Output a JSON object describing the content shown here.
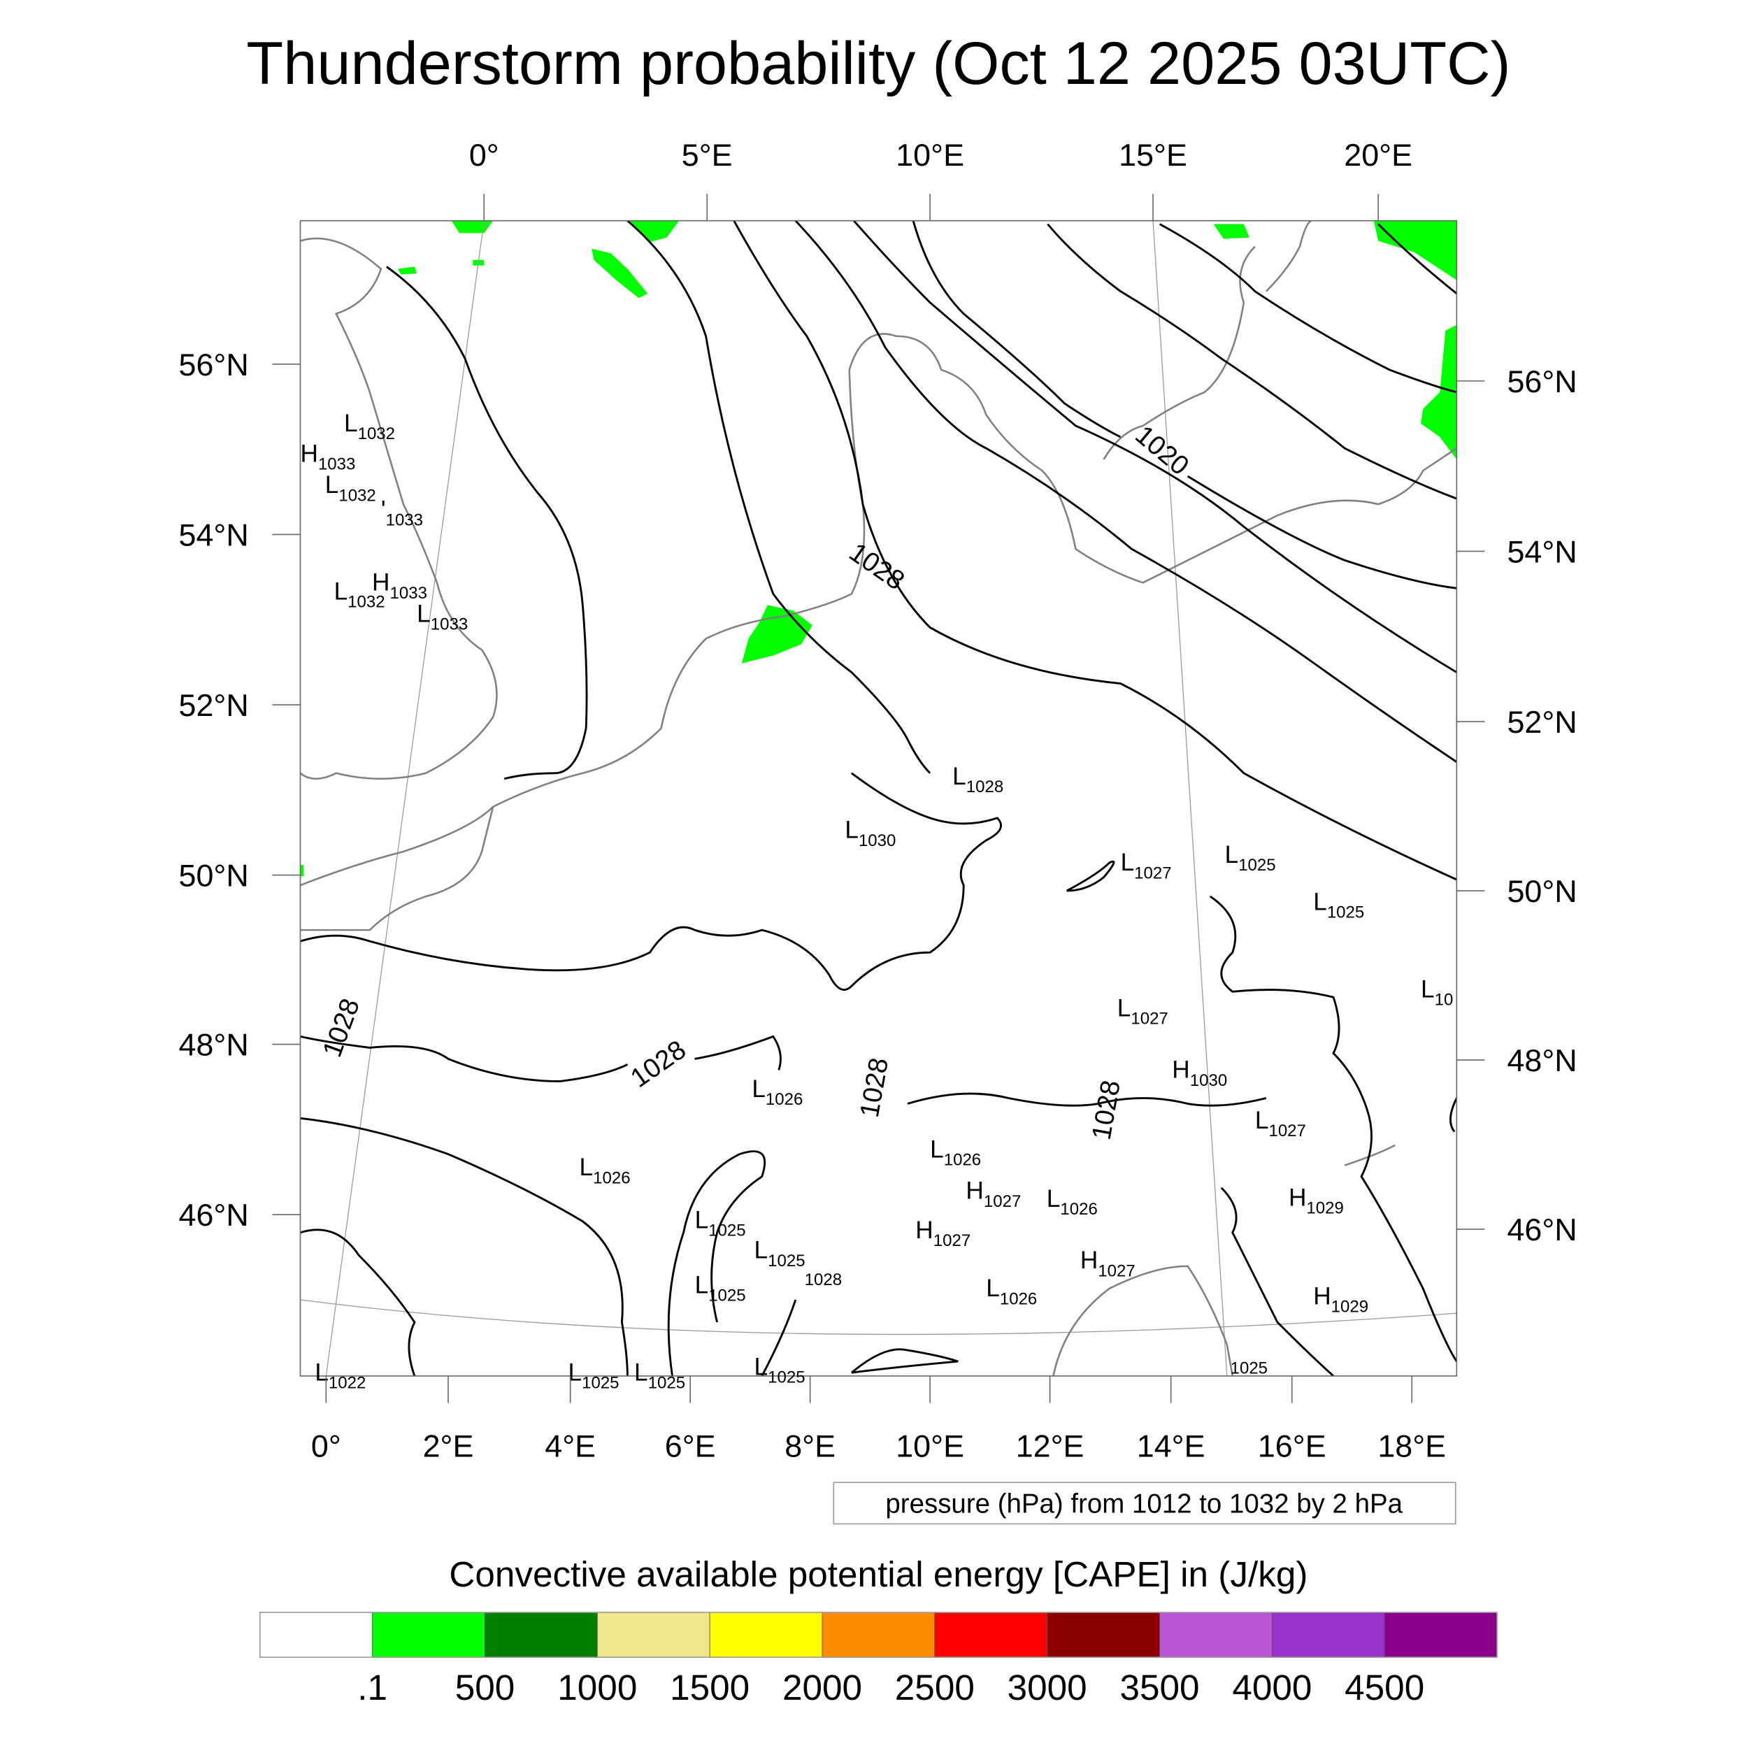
{
  "title": "Thunderstorm probability (Oct 12 2025 03UTC)",
  "axes": {
    "top": [
      "0°",
      "5°E",
      "10°E",
      "15°E",
      "20°E"
    ],
    "left": [
      "56°N",
      "54°N",
      "52°N",
      "50°N",
      "48°N",
      "46°N"
    ],
    "right": [
      "56°N",
      "54°N",
      "52°N",
      "50°N",
      "48°N",
      "46°N"
    ],
    "bottom": [
      "0°",
      "2°E",
      "4°E",
      "6°E",
      "8°E",
      "10°E",
      "12°E",
      "14°E",
      "16°E",
      "18°E"
    ]
  },
  "contour_info": "pressure (hPa) from 1012 to 1032 by 2 hPa",
  "map": {
    "contour_labels": [
      "1020",
      "1028",
      "1028",
      "1028",
      "1028",
      "1028"
    ],
    "centers": [
      {
        "t": "L",
        "v": "1032"
      },
      {
        "t": "H",
        "v": "1033"
      },
      {
        "t": "L",
        "v": "1032"
      },
      {
        "t": "'",
        "v": "1033"
      },
      {
        "t": "L",
        "v": "1032"
      },
      {
        "t": "H",
        "v": "1033"
      },
      {
        "t": "L",
        "v": "1033"
      },
      {
        "t": "L",
        "v": "1028"
      },
      {
        "t": "L",
        "v": "1030"
      },
      {
        "t": "L",
        "v": "1027"
      },
      {
        "t": "L",
        "v": "1025"
      },
      {
        "t": "L",
        "v": "1025"
      },
      {
        "t": "L",
        "v": "10"
      },
      {
        "t": "L",
        "v": "1027"
      },
      {
        "t": "H",
        "v": "1030"
      },
      {
        "t": "L",
        "v": "1026"
      },
      {
        "t": "L",
        "v": "1027"
      },
      {
        "t": "L",
        "v": "1026"
      },
      {
        "t": "L",
        "v": "1026"
      },
      {
        "t": "H",
        "v": "1027"
      },
      {
        "t": "L",
        "v": "1026"
      },
      {
        "t": "H",
        "v": "1029"
      },
      {
        "t": "L",
        "v": "1025"
      },
      {
        "t": "H",
        "v": "1027"
      },
      {
        "t": "L",
        "v": "1025"
      },
      {
        "t": "",
        "v": "1028"
      },
      {
        "t": "L",
        "v": "1025"
      },
      {
        "t": "H",
        "v": "1027"
      },
      {
        "t": "L",
        "v": "1026"
      },
      {
        "t": "H",
        "v": "1029"
      },
      {
        "t": "",
        "v": "1025"
      },
      {
        "t": "L",
        "v": "1022"
      },
      {
        "t": "L",
        "v": "1025"
      },
      {
        "t": "L",
        "v": "1025"
      },
      {
        "t": "L",
        "v": "1025"
      }
    ]
  },
  "colorbar": {
    "title": "Convective available potential energy [CAPE] in (J/kg)",
    "colors": [
      "#ffffff",
      "#00ff00",
      "#008000",
      "#f0e68c",
      "#ffff00",
      "#ff8c00",
      "#ff0000",
      "#8b0000",
      "#ba55d3",
      "#9932cc",
      "#8b008b"
    ],
    "labels": [
      ".1",
      "500",
      "1000",
      "1500",
      "2000",
      "2500",
      "3000",
      "3500",
      "4000",
      "4500"
    ]
  },
  "cape_fill_color": "#00ff00"
}
